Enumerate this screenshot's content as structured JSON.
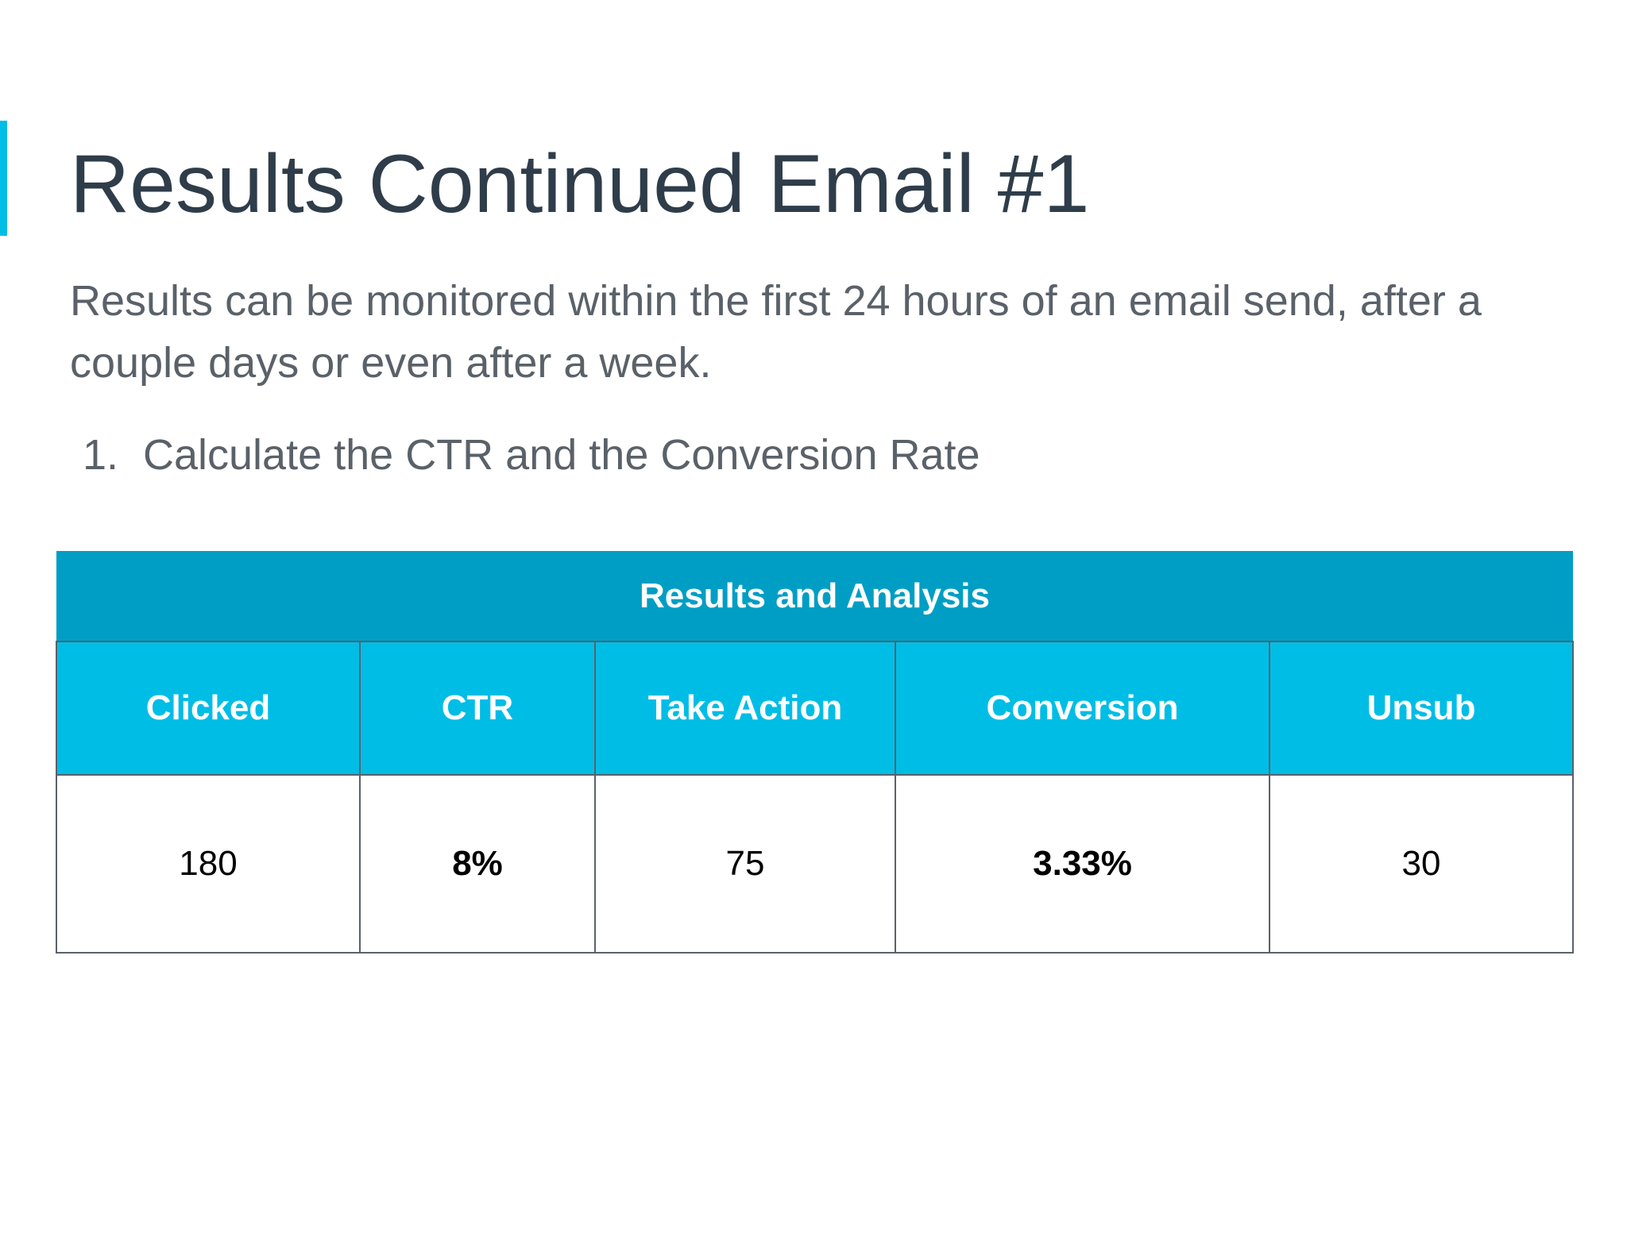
{
  "slide": {
    "title": "Results Continued Email #1",
    "body": "Results can be monitored within the first 24 hours of an email send, after a couple days or even after a week.",
    "steps": [
      {
        "number": "1.",
        "text": "Calculate the CTR and the Conversion Rate"
      }
    ]
  },
  "table": {
    "caption": "Results and Analysis",
    "headers": [
      "Clicked",
      "CTR",
      "Take Action",
      "Conversion",
      "Unsub"
    ],
    "rows": [
      [
        "180",
        "8%",
        "75",
        "3.33%",
        "30"
      ]
    ],
    "header_color": "#009ec4",
    "subheader_color": "#00bde6"
  },
  "colors": {
    "accent": "#00bde6",
    "title": "#2f3d4a",
    "body_text": "#5a6169"
  }
}
